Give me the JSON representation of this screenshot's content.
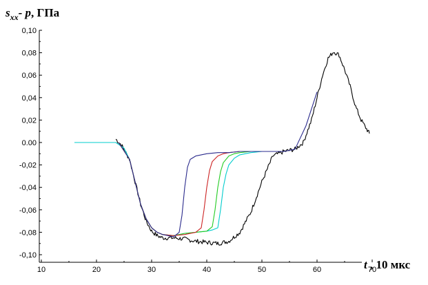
{
  "chart_data": {
    "type": "line",
    "ylabel": {
      "main": "s",
      "sub": "xx",
      "rest": "- p",
      "unit": ", ГПа"
    },
    "xlabel": {
      "var": "t",
      "unit": " , 10 мкс"
    },
    "xlim": [
      10,
      75
    ],
    "ylim": [
      -0.1,
      0.1
    ],
    "x_ticks": [
      10,
      20,
      30,
      40,
      50,
      60,
      70
    ],
    "y_ticks": [
      0.1,
      0.08,
      0.06,
      0.04,
      0.02,
      0.0,
      -0.02,
      -0.04,
      -0.06,
      -0.08,
      -0.1
    ],
    "y_tick_labels": [
      "0,10",
      "0,08",
      "0,06",
      "0,04",
      "0,02",
      "0.00",
      "-0,02",
      "-0,04",
      "-0,06",
      "-0,08",
      "-0,10"
    ],
    "series": [
      {
        "color": "#000000",
        "noisy": true,
        "x": [
          23.5,
          24.5,
          26,
          27,
          28,
          29,
          30,
          31,
          32,
          34,
          36,
          38,
          40,
          42,
          44,
          46,
          48,
          50,
          52,
          54,
          56,
          57.5,
          59,
          60,
          61,
          62,
          63,
          64,
          65,
          66,
          67,
          68,
          69,
          69.5
        ],
        "y": [
          0.003,
          -0.002,
          -0.015,
          -0.035,
          -0.055,
          -0.07,
          -0.079,
          -0.083,
          -0.085,
          -0.085,
          -0.086,
          -0.088,
          -0.089,
          -0.09,
          -0.088,
          -0.08,
          -0.062,
          -0.035,
          -0.012,
          -0.008,
          -0.006,
          0.0,
          0.02,
          0.04,
          0.06,
          0.075,
          0.081,
          0.078,
          0.065,
          0.05,
          0.032,
          0.02,
          0.012,
          0.008
        ]
      },
      {
        "color": "#00cccc",
        "noisy": false,
        "x": [
          16,
          22,
          23.5,
          25,
          26,
          27,
          28,
          29,
          30,
          31,
          32,
          34,
          36,
          38,
          40,
          41,
          42,
          42.5,
          43,
          43.5,
          44,
          45,
          46,
          47,
          48,
          50,
          52,
          54
        ],
        "y": [
          0.0,
          0.0,
          0.0,
          -0.005,
          -0.015,
          -0.035,
          -0.055,
          -0.068,
          -0.076,
          -0.08,
          -0.082,
          -0.083,
          -0.081,
          -0.08,
          -0.079,
          -0.078,
          -0.076,
          -0.06,
          -0.04,
          -0.028,
          -0.02,
          -0.014,
          -0.011,
          -0.01,
          -0.009,
          -0.008,
          -0.008,
          -0.008
        ]
      },
      {
        "color": "#22cc22",
        "noisy": false,
        "x": [
          24,
          26,
          27,
          28,
          29,
          30,
          31,
          32,
          34,
          36,
          38,
          40,
          41,
          41.5,
          42,
          42.5,
          43,
          44,
          45,
          46,
          48,
          50,
          52,
          54
        ],
        "y": [
          0.0,
          -0.015,
          -0.035,
          -0.055,
          -0.068,
          -0.076,
          -0.08,
          -0.082,
          -0.083,
          -0.081,
          -0.08,
          -0.079,
          -0.075,
          -0.06,
          -0.04,
          -0.026,
          -0.018,
          -0.012,
          -0.01,
          -0.009,
          -0.008,
          -0.008,
          -0.008,
          -0.008
        ]
      },
      {
        "color": "#cc2222",
        "noisy": false,
        "x": [
          24,
          26,
          27,
          28,
          29,
          30,
          31,
          32,
          34,
          36,
          38,
          39,
          39.5,
          40,
          40.5,
          41,
          42,
          43,
          44,
          46,
          48,
          50,
          52,
          54
        ],
        "y": [
          0.0,
          -0.015,
          -0.035,
          -0.055,
          -0.068,
          -0.076,
          -0.08,
          -0.082,
          -0.083,
          -0.082,
          -0.08,
          -0.076,
          -0.06,
          -0.04,
          -0.025,
          -0.017,
          -0.012,
          -0.01,
          -0.009,
          -0.008,
          -0.008,
          -0.008,
          -0.008,
          -0.008
        ]
      },
      {
        "color": "#2a2a8c",
        "noisy": false,
        "x": [
          24,
          26,
          27,
          28,
          29,
          30,
          31,
          32,
          33,
          34,
          35,
          35.5,
          36,
          36.5,
          37,
          38,
          39,
          40,
          42,
          44,
          46,
          48,
          50,
          52,
          54,
          56,
          58,
          59,
          60
        ],
        "y": [
          0.0,
          -0.015,
          -0.035,
          -0.055,
          -0.068,
          -0.076,
          -0.08,
          -0.082,
          -0.083,
          -0.084,
          -0.08,
          -0.065,
          -0.04,
          -0.022,
          -0.015,
          -0.012,
          -0.011,
          -0.01,
          -0.009,
          -0.009,
          -0.008,
          -0.008,
          -0.008,
          -0.008,
          -0.008,
          -0.006,
          0.015,
          0.03,
          0.045
        ]
      }
    ]
  }
}
